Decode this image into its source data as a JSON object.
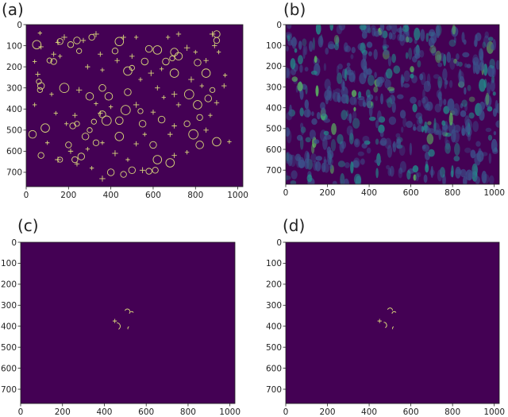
{
  "figure": {
    "background": "#440154",
    "feature_color": "#d8d77a",
    "grid": false
  },
  "chart_data": [
    {
      "type": "heatmap",
      "panel_label": "(a)",
      "content": "markers",
      "xlim": [
        0,
        1024
      ],
      "ylim": [
        768,
        0
      ],
      "x_ticks": [
        0,
        200,
        400,
        600,
        800,
        1000
      ],
      "y_ticks": [
        0,
        100,
        200,
        300,
        400,
        500,
        600,
        700
      ],
      "circles": [
        {
          "x": 50,
          "y": 95,
          "r": 20
        },
        {
          "x": 130,
          "y": 175,
          "r": 14
        },
        {
          "x": 160,
          "y": 80,
          "r": 14
        },
        {
          "x": 60,
          "y": 270,
          "r": 12
        },
        {
          "x": 70,
          "y": 290,
          "r": 16
        },
        {
          "x": 65,
          "y": 310,
          "r": 12
        },
        {
          "x": 180,
          "y": 300,
          "r": 22
        },
        {
          "x": 240,
          "y": 75,
          "r": 16
        },
        {
          "x": 250,
          "y": 125,
          "r": 12
        },
        {
          "x": 210,
          "y": 95,
          "r": 14
        },
        {
          "x": 310,
          "y": 60,
          "r": 14
        },
        {
          "x": 300,
          "y": 340,
          "r": 18
        },
        {
          "x": 360,
          "y": 425,
          "r": 16
        },
        {
          "x": 380,
          "y": 455,
          "r": 22
        },
        {
          "x": 440,
          "y": 80,
          "r": 20
        },
        {
          "x": 420,
          "y": 125,
          "r": 14
        },
        {
          "x": 480,
          "y": 220,
          "r": 20
        },
        {
          "x": 500,
          "y": 205,
          "r": 12
        },
        {
          "x": 480,
          "y": 320,
          "r": 16
        },
        {
          "x": 470,
          "y": 405,
          "r": 22
        },
        {
          "x": 440,
          "y": 455,
          "r": 18
        },
        {
          "x": 540,
          "y": 410,
          "r": 12
        },
        {
          "x": 560,
          "y": 175,
          "r": 16
        },
        {
          "x": 580,
          "y": 115,
          "r": 16
        },
        {
          "x": 620,
          "y": 120,
          "r": 20
        },
        {
          "x": 660,
          "y": 175,
          "r": 16
        },
        {
          "x": 690,
          "y": 160,
          "r": 12
        },
        {
          "x": 700,
          "y": 130,
          "r": 18
        },
        {
          "x": 720,
          "y": 150,
          "r": 18
        },
        {
          "x": 700,
          "y": 230,
          "r": 20
        },
        {
          "x": 600,
          "y": 570,
          "r": 16
        },
        {
          "x": 620,
          "y": 640,
          "r": 20
        },
        {
          "x": 680,
          "y": 655,
          "r": 20
        },
        {
          "x": 610,
          "y": 690,
          "r": 14
        },
        {
          "x": 580,
          "y": 695,
          "r": 14
        },
        {
          "x": 500,
          "y": 690,
          "r": 16
        },
        {
          "x": 460,
          "y": 710,
          "r": 14
        },
        {
          "x": 400,
          "y": 700,
          "r": 16
        },
        {
          "x": 330,
          "y": 560,
          "r": 14
        },
        {
          "x": 280,
          "y": 530,
          "r": 16
        },
        {
          "x": 260,
          "y": 625,
          "r": 16
        },
        {
          "x": 230,
          "y": 640,
          "r": 14
        },
        {
          "x": 200,
          "y": 570,
          "r": 14
        },
        {
          "x": 90,
          "y": 490,
          "r": 20
        },
        {
          "x": 30,
          "y": 520,
          "r": 18
        },
        {
          "x": 70,
          "y": 620,
          "r": 14
        },
        {
          "x": 220,
          "y": 480,
          "r": 14
        },
        {
          "x": 240,
          "y": 470,
          "r": 12
        },
        {
          "x": 300,
          "y": 500,
          "r": 12
        },
        {
          "x": 320,
          "y": 460,
          "r": 12
        },
        {
          "x": 440,
          "y": 530,
          "r": 20
        },
        {
          "x": 550,
          "y": 470,
          "r": 16
        },
        {
          "x": 770,
          "y": 330,
          "r": 22
        },
        {
          "x": 810,
          "y": 380,
          "r": 20
        },
        {
          "x": 820,
          "y": 440,
          "r": 14
        },
        {
          "x": 860,
          "y": 350,
          "r": 16
        },
        {
          "x": 880,
          "y": 310,
          "r": 12
        },
        {
          "x": 850,
          "y": 230,
          "r": 20
        },
        {
          "x": 810,
          "y": 180,
          "r": 16
        },
        {
          "x": 900,
          "y": 45,
          "r": 16
        },
        {
          "x": 900,
          "y": 75,
          "r": 14
        },
        {
          "x": 900,
          "y": 555,
          "r": 20
        },
        {
          "x": 820,
          "y": 570,
          "r": 18
        },
        {
          "x": 760,
          "y": 470,
          "r": 14
        },
        {
          "x": 790,
          "y": 520,
          "r": 22
        },
        {
          "x": 640,
          "y": 450,
          "r": 16
        },
        {
          "x": 360,
          "y": 300,
          "r": 16
        },
        {
          "x": 390,
          "y": 340,
          "r": 18
        },
        {
          "x": 160,
          "y": 640,
          "r": 12
        },
        {
          "x": 110,
          "y": 170,
          "r": 12
        }
      ],
      "crosses": [
        {
          "x": 65,
          "y": 40,
          "s": 10
        },
        {
          "x": 70,
          "y": 105,
          "s": 12
        },
        {
          "x": 40,
          "y": 175,
          "s": 10
        },
        {
          "x": 130,
          "y": 140,
          "s": 12
        },
        {
          "x": 160,
          "y": 150,
          "s": 10
        },
        {
          "x": 180,
          "y": 60,
          "s": 14
        },
        {
          "x": 150,
          "y": 85,
          "s": 12
        },
        {
          "x": 120,
          "y": 330,
          "s": 10
        },
        {
          "x": 40,
          "y": 380,
          "s": 10
        },
        {
          "x": 55,
          "y": 235,
          "s": 12
        },
        {
          "x": 250,
          "y": 310,
          "s": 14
        },
        {
          "x": 290,
          "y": 200,
          "s": 12
        },
        {
          "x": 270,
          "y": 75,
          "s": 12
        },
        {
          "x": 330,
          "y": 45,
          "s": 14
        },
        {
          "x": 350,
          "y": 140,
          "s": 12
        },
        {
          "x": 360,
          "y": 215,
          "s": 10
        },
        {
          "x": 430,
          "y": 170,
          "s": 12
        },
        {
          "x": 460,
          "y": 60,
          "s": 12
        },
        {
          "x": 520,
          "y": 60,
          "s": 10
        },
        {
          "x": 500,
          "y": 150,
          "s": 12
        },
        {
          "x": 540,
          "y": 260,
          "s": 10
        },
        {
          "x": 590,
          "y": 230,
          "s": 14
        },
        {
          "x": 640,
          "y": 210,
          "s": 10
        },
        {
          "x": 620,
          "y": 300,
          "s": 12
        },
        {
          "x": 670,
          "y": 60,
          "s": 10
        },
        {
          "x": 720,
          "y": 45,
          "s": 12
        },
        {
          "x": 760,
          "y": 110,
          "s": 14
        },
        {
          "x": 800,
          "y": 130,
          "s": 10
        },
        {
          "x": 850,
          "y": 170,
          "s": 12
        },
        {
          "x": 880,
          "y": 45,
          "s": 14
        },
        {
          "x": 910,
          "y": 130,
          "s": 10
        },
        {
          "x": 935,
          "y": 290,
          "s": 12
        },
        {
          "x": 780,
          "y": 260,
          "s": 14
        },
        {
          "x": 830,
          "y": 290,
          "s": 10
        },
        {
          "x": 900,
          "y": 370,
          "s": 12
        },
        {
          "x": 870,
          "y": 430,
          "s": 10
        },
        {
          "x": 720,
          "y": 380,
          "s": 12
        },
        {
          "x": 700,
          "y": 330,
          "s": 14
        },
        {
          "x": 650,
          "y": 345,
          "s": 10
        },
        {
          "x": 600,
          "y": 415,
          "s": 12
        },
        {
          "x": 520,
          "y": 380,
          "s": 14
        },
        {
          "x": 400,
          "y": 390,
          "s": 10
        },
        {
          "x": 350,
          "y": 420,
          "s": 12
        },
        {
          "x": 330,
          "y": 375,
          "s": 10
        },
        {
          "x": 230,
          "y": 430,
          "s": 12
        },
        {
          "x": 190,
          "y": 470,
          "s": 10
        },
        {
          "x": 140,
          "y": 420,
          "s": 10
        },
        {
          "x": 210,
          "y": 600,
          "s": 12
        },
        {
          "x": 150,
          "y": 640,
          "s": 14
        },
        {
          "x": 240,
          "y": 660,
          "s": 12
        },
        {
          "x": 290,
          "y": 590,
          "s": 10
        },
        {
          "x": 360,
          "y": 560,
          "s": 10
        },
        {
          "x": 420,
          "y": 610,
          "s": 14
        },
        {
          "x": 520,
          "y": 565,
          "s": 12
        },
        {
          "x": 560,
          "y": 520,
          "s": 10
        },
        {
          "x": 680,
          "y": 520,
          "s": 12
        },
        {
          "x": 700,
          "y": 480,
          "s": 12
        },
        {
          "x": 760,
          "y": 605,
          "s": 10
        },
        {
          "x": 700,
          "y": 620,
          "s": 12
        },
        {
          "x": 550,
          "y": 690,
          "s": 14
        },
        {
          "x": 360,
          "y": 730,
          "s": 14
        },
        {
          "x": 310,
          "y": 680,
          "s": 10
        },
        {
          "x": 890,
          "y": 100,
          "s": 12
        },
        {
          "x": 940,
          "y": 240,
          "s": 10
        },
        {
          "x": 850,
          "y": 500,
          "s": 12
        },
        {
          "x": 960,
          "y": 555,
          "s": 10
        },
        {
          "x": 100,
          "y": 560,
          "s": 10
        },
        {
          "x": 480,
          "y": 640,
          "s": 10
        }
      ]
    },
    {
      "type": "heatmap",
      "panel_label": "(b)",
      "content": "intensity map",
      "xlim": [
        0,
        1024
      ],
      "ylim": [
        768,
        0
      ],
      "x_ticks": [
        0,
        200,
        400,
        600,
        800,
        1000
      ],
      "y_ticks": [
        0,
        100,
        200,
        300,
        400,
        500,
        600,
        700
      ],
      "colormap": [
        "#440154",
        "#3b528b",
        "#21918c",
        "#5ec962"
      ],
      "seed": 17,
      "blob_count": 520
    },
    {
      "type": "heatmap",
      "panel_label": "(c)",
      "content": "markers",
      "xlim": [
        0,
        1024
      ],
      "ylim": [
        768,
        0
      ],
      "x_ticks": [
        0,
        200,
        400,
        600,
        800,
        1000
      ],
      "y_ticks": [
        0,
        100,
        200,
        300,
        400,
        500,
        600,
        700
      ],
      "arcs": [
        {
          "x": 510,
          "y": 330,
          "r": 12,
          "start": 200,
          "end": 360
        },
        {
          "x": 530,
          "y": 340,
          "r": 10,
          "start": 180,
          "end": 330
        },
        {
          "x": 460,
          "y": 400,
          "r": 16,
          "start": 270,
          "end": 60
        },
        {
          "x": 520,
          "y": 410,
          "r": 8,
          "start": 150,
          "end": 250
        }
      ],
      "crosses": [
        {
          "x": 450,
          "y": 375,
          "s": 10
        }
      ]
    },
    {
      "type": "heatmap",
      "panel_label": "(d)",
      "content": "markers",
      "xlim": [
        0,
        1024
      ],
      "ylim": [
        768,
        0
      ],
      "x_ticks": [
        0,
        200,
        400,
        600,
        800,
        1000
      ],
      "y_ticks": [
        0,
        100,
        200,
        300,
        400,
        500,
        600,
        700
      ],
      "arcs": [
        {
          "x": 500,
          "y": 325,
          "r": 12,
          "start": 200,
          "end": 360
        },
        {
          "x": 520,
          "y": 340,
          "r": 10,
          "start": 180,
          "end": 330
        },
        {
          "x": 470,
          "y": 395,
          "r": 14,
          "start": 270,
          "end": 60
        },
        {
          "x": 520,
          "y": 410,
          "r": 8,
          "start": 150,
          "end": 250
        }
      ],
      "crosses": [
        {
          "x": 450,
          "y": 375,
          "s": 10
        }
      ]
    }
  ]
}
